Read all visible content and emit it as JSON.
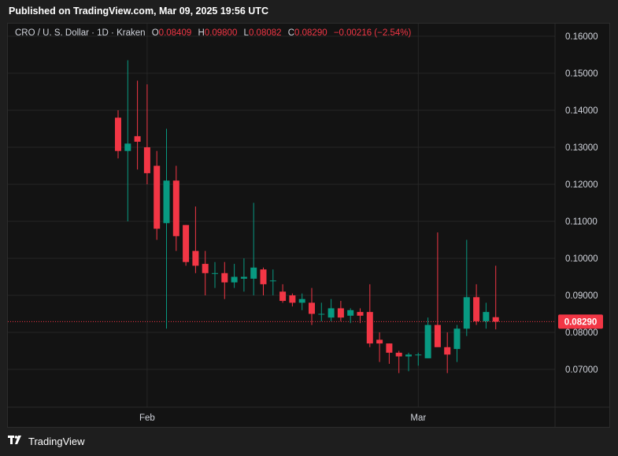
{
  "header": {
    "published": "Published on TradingView.com, Mar 09, 2025 19:56 UTC"
  },
  "legend": {
    "symbol": "CRO / U. S. Dollar · 1D · Kraken",
    "o_label": "O",
    "o_value": "0.08409",
    "h_label": "H",
    "h_value": "0.09800",
    "l_label": "L",
    "l_value": "0.08082",
    "c_label": "C",
    "c_value": "0.08290",
    "change": "−0.00216 (−2.54%)"
  },
  "footer": {
    "brand": "TradingView",
    "logo_icon": "tradingview-logo-icon"
  },
  "colors": {
    "up": "#089981",
    "down": "#f23645",
    "background": "#131313",
    "grid": "#262626",
    "axis_text": "#d1d4dc",
    "price_line": "#f23645"
  },
  "chart_data": {
    "type": "candlestick",
    "symbol": "CRO/USD",
    "interval": "1D",
    "exchange": "Kraken",
    "ylim": [
      0.06,
      0.165
    ],
    "y_ticks": [
      "0.16000",
      "0.15000",
      "0.14000",
      "0.13000",
      "0.12000",
      "0.11000",
      "0.10000",
      "0.09000",
      "0.08000",
      "0.07000"
    ],
    "y_tick_values": [
      0.16,
      0.15,
      0.14,
      0.13,
      0.12,
      0.11,
      0.1,
      0.09,
      0.08,
      0.07
    ],
    "x_ticks": [
      {
        "label": "Feb",
        "index": 3
      },
      {
        "label": "Mar",
        "index": 31
      }
    ],
    "last_price": 0.0829,
    "last_price_label": "0.08290",
    "candles": [
      {
        "o": 0.138,
        "h": 0.14,
        "l": 0.127,
        "c": 0.129
      },
      {
        "o": 0.129,
        "h": 0.1535,
        "l": 0.11,
        "c": 0.131
      },
      {
        "o": 0.133,
        "h": 0.148,
        "l": 0.124,
        "c": 0.1315
      },
      {
        "o": 0.13,
        "h": 0.147,
        "l": 0.12,
        "c": 0.123
      },
      {
        "o": 0.125,
        "h": 0.129,
        "l": 0.105,
        "c": 0.108
      },
      {
        "o": 0.1095,
        "h": 0.135,
        "l": 0.081,
        "c": 0.121
      },
      {
        "o": 0.121,
        "h": 0.125,
        "l": 0.102,
        "c": 0.106
      },
      {
        "o": 0.109,
        "h": 0.109,
        "l": 0.098,
        "c": 0.099
      },
      {
        "o": 0.102,
        "h": 0.114,
        "l": 0.096,
        "c": 0.098
      },
      {
        "o": 0.0985,
        "h": 0.102,
        "l": 0.09,
        "c": 0.096
      },
      {
        "o": 0.096,
        "h": 0.099,
        "l": 0.092,
        "c": 0.096
      },
      {
        "o": 0.096,
        "h": 0.099,
        "l": 0.089,
        "c": 0.0935
      },
      {
        "o": 0.0935,
        "h": 0.0985,
        "l": 0.092,
        "c": 0.095
      },
      {
        "o": 0.0945,
        "h": 0.1,
        "l": 0.091,
        "c": 0.095
      },
      {
        "o": 0.0945,
        "h": 0.115,
        "l": 0.09,
        "c": 0.0975
      },
      {
        "o": 0.097,
        "h": 0.0975,
        "l": 0.09,
        "c": 0.093
      },
      {
        "o": 0.094,
        "h": 0.097,
        "l": 0.09,
        "c": 0.094
      },
      {
        "o": 0.091,
        "h": 0.093,
        "l": 0.088,
        "c": 0.0885
      },
      {
        "o": 0.09,
        "h": 0.0905,
        "l": 0.087,
        "c": 0.088
      },
      {
        "o": 0.088,
        "h": 0.0905,
        "l": 0.086,
        "c": 0.089
      },
      {
        "o": 0.088,
        "h": 0.092,
        "l": 0.082,
        "c": 0.085
      },
      {
        "o": 0.085,
        "h": 0.088,
        "l": 0.083,
        "c": 0.085
      },
      {
        "o": 0.084,
        "h": 0.089,
        "l": 0.083,
        "c": 0.0865
      },
      {
        "o": 0.0865,
        "h": 0.0885,
        "l": 0.083,
        "c": 0.084
      },
      {
        "o": 0.0845,
        "h": 0.0865,
        "l": 0.0825,
        "c": 0.086
      },
      {
        "o": 0.0855,
        "h": 0.0865,
        "l": 0.0825,
        "c": 0.0845
      },
      {
        "o": 0.0855,
        "h": 0.093,
        "l": 0.076,
        "c": 0.077
      },
      {
        "o": 0.078,
        "h": 0.08,
        "l": 0.072,
        "c": 0.077
      },
      {
        "o": 0.077,
        "h": 0.077,
        "l": 0.0715,
        "c": 0.0745
      },
      {
        "o": 0.0745,
        "h": 0.075,
        "l": 0.069,
        "c": 0.0735
      },
      {
        "o": 0.0735,
        "h": 0.0745,
        "l": 0.0695,
        "c": 0.074
      },
      {
        "o": 0.074,
        "h": 0.0745,
        "l": 0.071,
        "c": 0.074
      },
      {
        "o": 0.073,
        "h": 0.084,
        "l": 0.073,
        "c": 0.082
      },
      {
        "o": 0.082,
        "h": 0.107,
        "l": 0.077,
        "c": 0.076
      },
      {
        "o": 0.076,
        "h": 0.08,
        "l": 0.069,
        "c": 0.074
      },
      {
        "o": 0.0755,
        "h": 0.082,
        "l": 0.072,
        "c": 0.081
      },
      {
        "o": 0.081,
        "h": 0.105,
        "l": 0.079,
        "c": 0.0895
      },
      {
        "o": 0.0895,
        "h": 0.093,
        "l": 0.082,
        "c": 0.083
      },
      {
        "o": 0.083,
        "h": 0.088,
        "l": 0.081,
        "c": 0.0855
      },
      {
        "o": 0.0841,
        "h": 0.098,
        "l": 0.0808,
        "c": 0.0829
      }
    ]
  }
}
